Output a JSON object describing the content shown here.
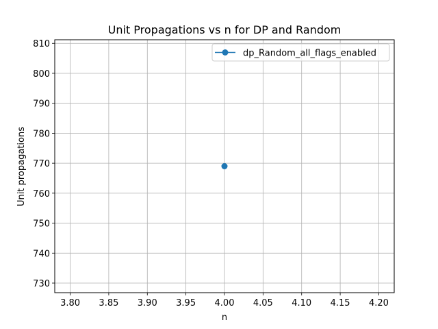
{
  "chart_data": {
    "type": "line",
    "title": "Unit Propagations vs n for DP and Random",
    "xlabel": "n",
    "ylabel": "Unit propagations",
    "xlim": [
      3.78,
      4.22
    ],
    "ylim": [
      726.8,
      811.2
    ],
    "xticks": [
      3.8,
      3.85,
      3.9,
      3.95,
      4.0,
      4.05,
      4.1,
      4.15,
      4.2
    ],
    "xtick_labels": [
      "3.80",
      "3.85",
      "3.90",
      "3.95",
      "4.00",
      "4.05",
      "4.10",
      "4.15",
      "4.20"
    ],
    "yticks": [
      730,
      740,
      750,
      760,
      770,
      780,
      790,
      800,
      810
    ],
    "ytick_labels": [
      "730",
      "740",
      "750",
      "760",
      "770",
      "780",
      "790",
      "800",
      "810"
    ],
    "grid": true,
    "legend_position": "top-right",
    "series": [
      {
        "name": "dp_Random_all_flags_enabled",
        "color": "#1f77b4",
        "marker": "circle",
        "x": [
          4.0
        ],
        "y": [
          769
        ]
      }
    ]
  }
}
